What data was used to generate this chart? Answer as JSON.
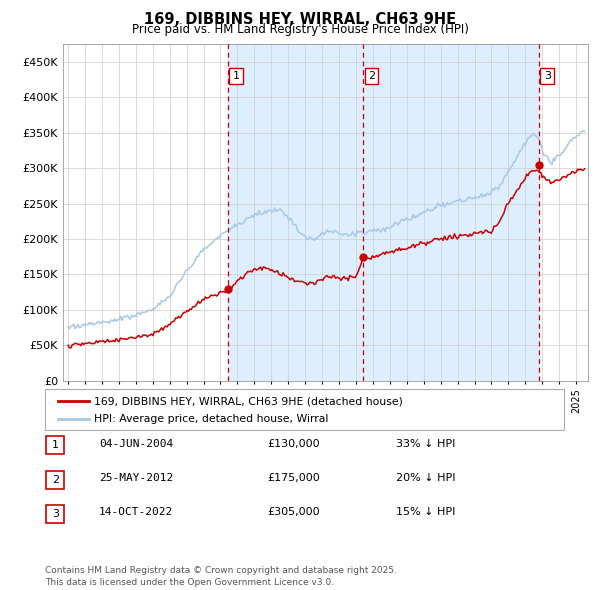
{
  "title": "169, DIBBINS HEY, WIRRAL, CH63 9HE",
  "subtitle": "Price paid vs. HM Land Registry's House Price Index (HPI)",
  "hpi_color": "#a8c8e8",
  "price_color": "#cc0000",
  "sale_marker_color": "#cc0000",
  "vline_color": "#cc0000",
  "bg_highlight_color": "#ddeeff",
  "ylim": [
    0,
    475000
  ],
  "yticks": [
    0,
    50000,
    100000,
    150000,
    200000,
    250000,
    300000,
    350000,
    400000,
    450000
  ],
  "ytick_labels": [
    "£0",
    "£50K",
    "£100K",
    "£150K",
    "£200K",
    "£250K",
    "£300K",
    "£350K",
    "£400K",
    "£450K"
  ],
  "x_start_year": 1995,
  "x_end_year": 2025,
  "sale1_year": 2004.42,
  "sale1_price": 130000,
  "sale2_year": 2012.4,
  "sale2_price": 175000,
  "sale3_year": 2022.79,
  "sale3_price": 305000,
  "sale1_label": "1",
  "sale2_label": "2",
  "sale3_label": "3",
  "legend_property": "169, DIBBINS HEY, WIRRAL, CH63 9HE (detached house)",
  "legend_hpi": "HPI: Average price, detached house, Wirral",
  "table_rows": [
    [
      "1",
      "04-JUN-2004",
      "£130,000",
      "33% ↓ HPI"
    ],
    [
      "2",
      "25-MAY-2012",
      "£175,000",
      "20% ↓ HPI"
    ],
    [
      "3",
      "14-OCT-2022",
      "£305,000",
      "15% ↓ HPI"
    ]
  ],
  "footnote": "Contains HM Land Registry data © Crown copyright and database right 2025.\nThis data is licensed under the Open Government Licence v3.0."
}
